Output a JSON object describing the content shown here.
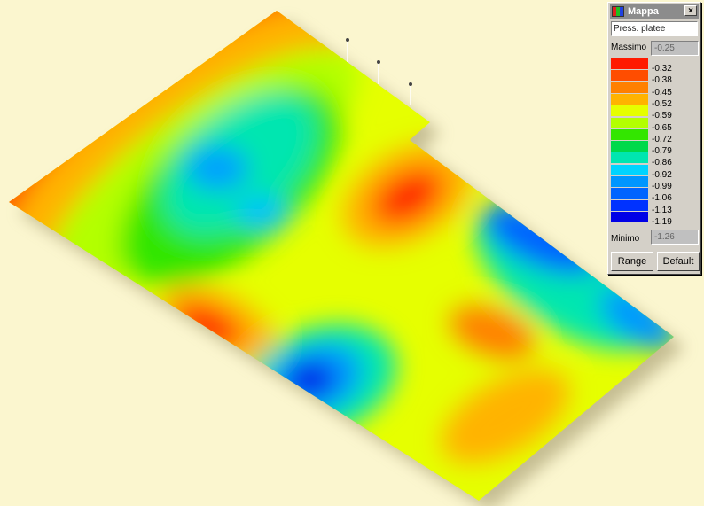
{
  "window": {
    "title": "Mappa",
    "close_label": "×",
    "app_icon": "mappa-app-icon",
    "close_icon": "close-icon"
  },
  "quantity": {
    "selected": "Press. platee"
  },
  "max": {
    "label": "Massimo",
    "value": "-0.25"
  },
  "min": {
    "label": "Minimo",
    "value": "-1.26"
  },
  "legend": {
    "colors": [
      "#ff1a00",
      "#ff4d00",
      "#ff8000",
      "#ffb300",
      "#e6ff00",
      "#b3ff00",
      "#33e600",
      "#00d94a",
      "#00e6b0",
      "#00d4ff",
      "#0096ff",
      "#0064ff",
      "#0032ff",
      "#0000e6"
    ],
    "values": [
      "-0.32",
      "-0.38",
      "-0.45",
      "-0.52",
      "-0.59",
      "-0.65",
      "-0.72",
      "-0.79",
      "-0.86",
      "-0.92",
      "-0.99",
      "-1.06",
      "-1.13",
      "-1.19"
    ]
  },
  "buttons": {
    "range": "Range",
    "default": "Default"
  }
}
